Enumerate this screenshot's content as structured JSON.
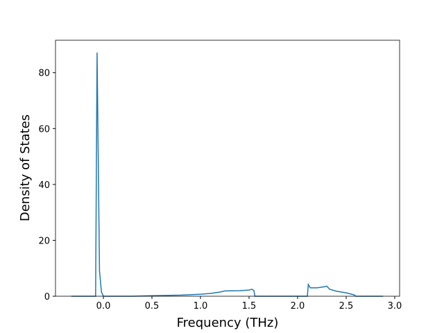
{
  "chart_data": {
    "type": "line",
    "x_label": "Frequency (THz)",
    "y_label": "Density of States",
    "series": [
      {
        "color": "#1f77b4",
        "x": [
          -0.33,
          -0.08,
          -0.065,
          -0.04,
          -0.02,
          0,
          0.3,
          0.5,
          0.8,
          1.0,
          1.1,
          1.2,
          1.25,
          1.4,
          1.5,
          1.53,
          1.55,
          1.56,
          2.1,
          2.11,
          2.13,
          2.2,
          2.28,
          2.3,
          2.33,
          2.4,
          2.5,
          2.58,
          2.6,
          2.88
        ],
        "values": [
          0,
          0,
          87.2,
          9,
          1.5,
          0,
          0,
          0.2,
          0.4,
          0.7,
          1.0,
          1.5,
          1.9,
          2.0,
          2.2,
          2.5,
          2.0,
          0,
          0,
          4.2,
          3.0,
          3.0,
          3.4,
          3.6,
          2.5,
          1.8,
          1.2,
          0.5,
          0,
          0
        ]
      }
    ],
    "xlim": [
      -0.493,
      3.05
    ],
    "ylim": [
      0,
      91.6
    ],
    "xticks": [
      {
        "value": 0,
        "label": "0.0"
      },
      {
        "value": 0.5,
        "label": "0.5"
      },
      {
        "value": 1,
        "label": "1.0"
      },
      {
        "value": 1.5,
        "label": "1.5"
      },
      {
        "value": 2,
        "label": "2.0"
      },
      {
        "value": 2.5,
        "label": "2.5"
      },
      {
        "value": 3,
        "label": "3.0"
      }
    ],
    "yticks": [
      0,
      20,
      40,
      60,
      80
    ]
  }
}
